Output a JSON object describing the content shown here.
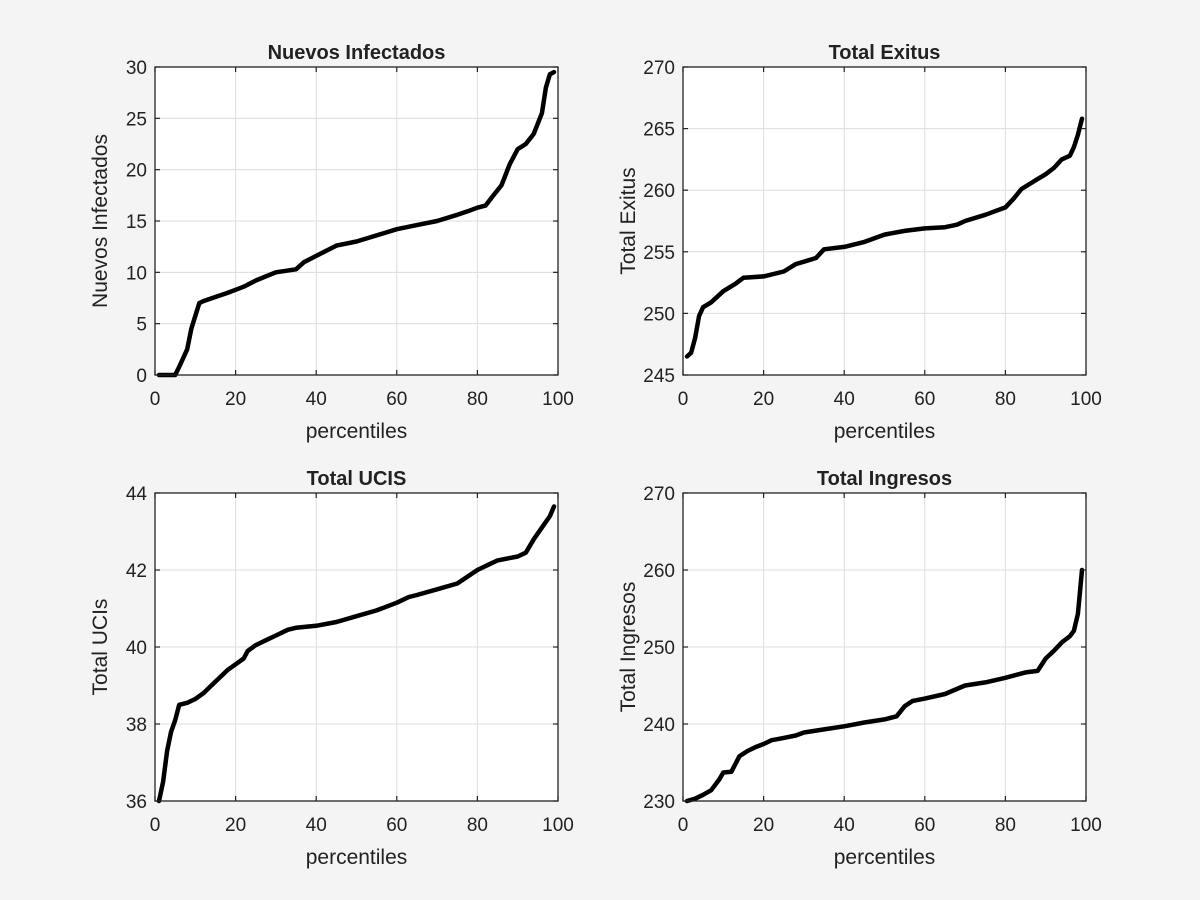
{
  "figure": {
    "background": "#f4f4f4",
    "axes_background": "#ffffff",
    "line_color": "#000000",
    "grid": true
  },
  "chart_data": [
    {
      "type": "line",
      "title": "Nuevos Infectados",
      "xlabel": "percentiles",
      "ylabel": "Nuevos Infectados",
      "xlim": [
        0,
        100
      ],
      "ylim": [
        0,
        30
      ],
      "xticks": [
        0,
        20,
        40,
        60,
        80,
        100
      ],
      "yticks": [
        0,
        5,
        10,
        15,
        20,
        25,
        30
      ],
      "x": [
        1,
        5,
        6,
        8,
        9,
        11,
        12,
        15,
        18,
        20,
        22,
        25,
        30,
        35,
        37,
        40,
        45,
        50,
        55,
        60,
        65,
        70,
        75,
        78,
        80,
        82,
        84,
        86,
        88,
        90,
        92,
        94,
        96,
        97,
        98,
        99
      ],
      "values": [
        0,
        0,
        0.8,
        2.5,
        4.5,
        7,
        7.2,
        7.6,
        8,
        8.3,
        8.6,
        9.2,
        10,
        10.3,
        11,
        11.6,
        12.6,
        13,
        13.6,
        14.2,
        14.6,
        15,
        15.6,
        16,
        16.3,
        16.5,
        17.5,
        18.5,
        20.5,
        22,
        22.5,
        23.5,
        25.5,
        28,
        29.3,
        29.5
      ]
    },
    {
      "type": "line",
      "title": "Total Exitus",
      "xlabel": "percentiles",
      "ylabel": "Total Exitus",
      "xlim": [
        0,
        100
      ],
      "ylim": [
        245,
        270
      ],
      "xticks": [
        0,
        20,
        40,
        60,
        80,
        100
      ],
      "yticks": [
        245,
        250,
        255,
        260,
        265,
        270
      ],
      "x": [
        1,
        2,
        3,
        4,
        5,
        7,
        10,
        13,
        15,
        20,
        25,
        28,
        30,
        33,
        35,
        40,
        45,
        50,
        55,
        60,
        65,
        68,
        70,
        75,
        80,
        82,
        84,
        86,
        88,
        90,
        92,
        94,
        96,
        97,
        98,
        99
      ],
      "values": [
        246.5,
        246.8,
        248,
        249.8,
        250.5,
        250.9,
        251.8,
        252.4,
        252.9,
        253,
        253.4,
        254,
        254.2,
        254.5,
        255.2,
        255.4,
        255.8,
        256.4,
        256.7,
        256.9,
        257,
        257.2,
        257.5,
        258,
        258.6,
        259.3,
        260.1,
        260.5,
        260.9,
        261.3,
        261.8,
        262.5,
        262.8,
        263.5,
        264.5,
        265.8
      ]
    },
    {
      "type": "line",
      "title": "Total UCIS",
      "xlabel": "percentiles",
      "ylabel": "Total UCIs",
      "xlim": [
        0,
        100
      ],
      "ylim": [
        36,
        44
      ],
      "xticks": [
        0,
        20,
        40,
        60,
        80,
        100
      ],
      "yticks": [
        36,
        38,
        40,
        42,
        44
      ],
      "x": [
        1,
        2,
        3,
        4,
        5,
        6,
        8,
        10,
        12,
        14,
        16,
        18,
        20,
        22,
        23,
        25,
        28,
        30,
        33,
        35,
        40,
        45,
        50,
        55,
        60,
        63,
        65,
        70,
        75,
        80,
        83,
        85,
        90,
        92,
        94,
        96,
        98,
        99
      ],
      "values": [
        36,
        36.5,
        37.3,
        37.8,
        38.1,
        38.5,
        38.55,
        38.65,
        38.8,
        39,
        39.2,
        39.4,
        39.55,
        39.7,
        39.9,
        40.05,
        40.2,
        40.3,
        40.45,
        40.5,
        40.55,
        40.65,
        40.8,
        40.95,
        41.15,
        41.3,
        41.35,
        41.5,
        41.65,
        42,
        42.15,
        42.25,
        42.35,
        42.45,
        42.8,
        43.1,
        43.4,
        43.65
      ]
    },
    {
      "type": "line",
      "title": "Total Ingresos",
      "xlabel": "percentiles",
      "ylabel": "Total Ingresos",
      "xlim": [
        0,
        100
      ],
      "ylim": [
        230,
        270
      ],
      "xticks": [
        0,
        20,
        40,
        60,
        80,
        100
      ],
      "yticks": [
        230,
        240,
        250,
        260,
        270
      ],
      "x": [
        1,
        3,
        5,
        7,
        9,
        10,
        12,
        14,
        16,
        18,
        20,
        22,
        25,
        28,
        30,
        35,
        40,
        45,
        50,
        53,
        55,
        57,
        60,
        65,
        70,
        75,
        80,
        85,
        88,
        90,
        92,
        94,
        96,
        97,
        98,
        99
      ],
      "values": [
        230,
        230.3,
        230.8,
        231.4,
        232.8,
        233.7,
        233.8,
        235.8,
        236.5,
        237,
        237.4,
        237.9,
        238.2,
        238.5,
        238.9,
        239.3,
        239.7,
        240.2,
        240.6,
        241,
        242.3,
        243,
        243.3,
        243.9,
        245,
        245.4,
        246,
        246.7,
        246.9,
        248.5,
        249.5,
        250.6,
        251.4,
        252.1,
        254.3,
        260
      ]
    }
  ]
}
